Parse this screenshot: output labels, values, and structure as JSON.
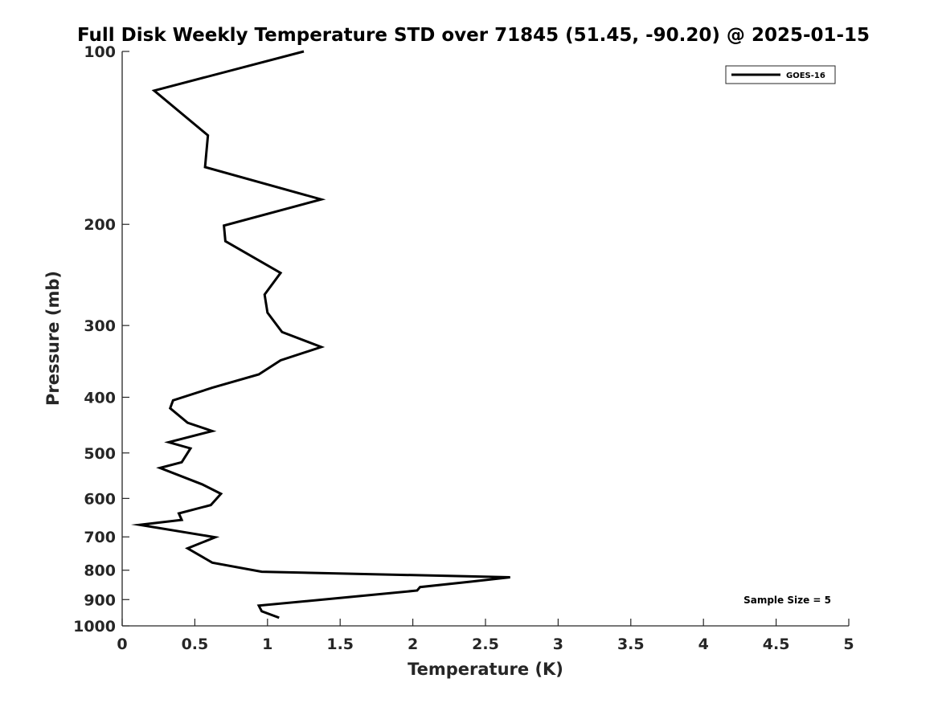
{
  "chart_data": {
    "type": "line",
    "title": "Full Disk Weekly Temperature STD over 71845 (51.45, -90.20) @ 2025-01-15",
    "xlabel": "Temperature (K)",
    "ylabel": "Pressure (mb)",
    "xlim": [
      0,
      5
    ],
    "ylim": [
      100,
      1000
    ],
    "yscale": "log",
    "y_reversed": true,
    "grid": false,
    "x_ticks": [
      0,
      0.5,
      1,
      1.5,
      2,
      2.5,
      3,
      3.5,
      4,
      4.5,
      5
    ],
    "x_tick_labels": [
      "0",
      "0.5",
      "1",
      "1.5",
      "2",
      "2.5",
      "3",
      "3.5",
      "4",
      "4.5",
      "5"
    ],
    "y_ticks": [
      100,
      200,
      300,
      400,
      500,
      600,
      700,
      800,
      900,
      1000
    ],
    "y_tick_labels": [
      "100",
      "200",
      "300",
      "400",
      "500",
      "600",
      "700",
      "800",
      "900",
      "1000"
    ],
    "legend_position": "top-right",
    "series": [
      {
        "name": "GOES-16",
        "color": "#000000",
        "x": [
          1.25,
          0.22,
          0.59,
          0.57,
          1.37,
          0.7,
          0.71,
          1.09,
          0.98,
          1.0,
          1.1,
          1.37,
          1.09,
          0.94,
          0.62,
          0.35,
          0.33,
          0.45,
          0.62,
          0.32,
          0.47,
          0.41,
          0.26,
          0.55,
          0.68,
          0.61,
          0.39,
          0.41,
          0.12,
          0.64,
          0.45,
          0.62,
          0.96,
          2.67,
          2.41,
          2.05,
          2.03,
          1.52,
          0.94,
          0.96,
          1.08
        ],
        "y": [
          100,
          117,
          140,
          159,
          181,
          201,
          214,
          243,
          265,
          285,
          308,
          327,
          345,
          365,
          385,
          405,
          418,
          443,
          458,
          479,
          491,
          519,
          531,
          567,
          589,
          616,
          637,
          654,
          667,
          701,
          733,
          776,
          805,
          823,
          837,
          856,
          868,
          893,
          922,
          943,
          968
        ]
      }
    ],
    "annotations": [
      "Sample Size = 5"
    ]
  }
}
